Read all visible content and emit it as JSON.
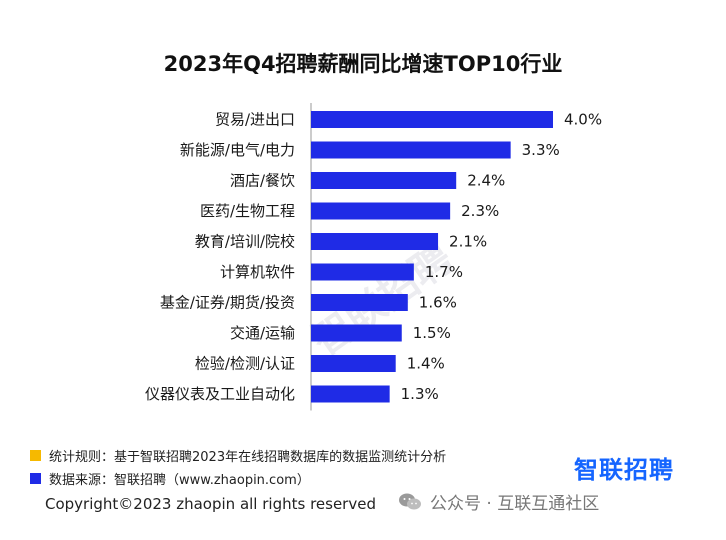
{
  "chart_data": {
    "type": "bar",
    "orientation": "horizontal",
    "title": "2023年Q4招聘薪酬同比增速TOP10行业",
    "categories": [
      "贸易/进出口",
      "新能源/电气/电力",
      "酒店/餐饮",
      "医药/生物工程",
      "教育/培训/院校",
      "计算机软件",
      "基金/证券/期货/投资",
      "交通/运输",
      "检验/检测/认证",
      "仪器仪表及工业自动化"
    ],
    "values": [
      4.0,
      3.3,
      2.4,
      2.3,
      2.1,
      1.7,
      1.6,
      1.5,
      1.4,
      1.3
    ],
    "value_labels": [
      "4.0%",
      "3.3%",
      "2.4%",
      "2.3%",
      "2.1%",
      "1.7%",
      "1.6%",
      "1.5%",
      "1.4%",
      "1.3%"
    ],
    "unit": "%",
    "xlim": [
      0,
      4.0
    ],
    "bar_color": "#1f2be6"
  },
  "footer": {
    "rule": "统计规则：基于智联招聘2023年在线招聘数据库的数据监测统计分析",
    "source": "数据来源：智联招聘（www.zhaopin.com）",
    "rule_color": "#f6b900",
    "source_color": "#1f2be6",
    "brand": "智联招聘",
    "brand_color": "#1565ff",
    "copyright": "Copyright©2023 zhaopin all rights reserved",
    "wechat": "公众号 · 互联互通社区"
  },
  "watermark": "智联招聘"
}
